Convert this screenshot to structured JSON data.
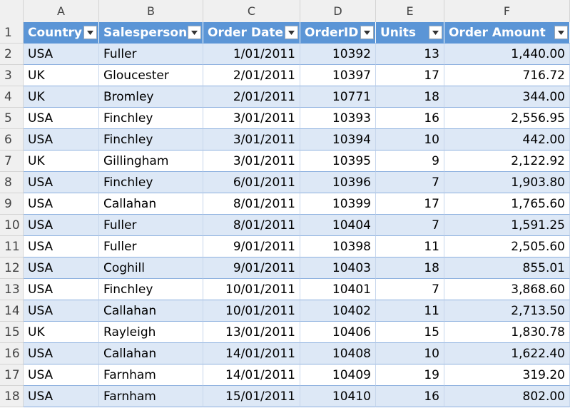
{
  "columns": [
    "A",
    "B",
    "C",
    "D",
    "E",
    "F"
  ],
  "row_numbers": [
    "1",
    "2",
    "3",
    "4",
    "5",
    "6",
    "7",
    "8",
    "9",
    "10",
    "11",
    "12",
    "13",
    "14",
    "15",
    "16",
    "17",
    "18"
  ],
  "table": {
    "headers": [
      "Country",
      "Salesperson",
      "Order Date",
      "OrderID",
      "Units",
      "Order Amount"
    ],
    "rows": [
      [
        "USA",
        "Fuller",
        "1/01/2011",
        "10392",
        "13",
        "1,440.00"
      ],
      [
        "UK",
        "Gloucester",
        "2/01/2011",
        "10397",
        "17",
        "716.72"
      ],
      [
        "UK",
        "Bromley",
        "2/01/2011",
        "10771",
        "18",
        "344.00"
      ],
      [
        "USA",
        "Finchley",
        "3/01/2011",
        "10393",
        "16",
        "2,556.95"
      ],
      [
        "USA",
        "Finchley",
        "3/01/2011",
        "10394",
        "10",
        "442.00"
      ],
      [
        "UK",
        "Gillingham",
        "3/01/2011",
        "10395",
        "9",
        "2,122.92"
      ],
      [
        "USA",
        "Finchley",
        "6/01/2011",
        "10396",
        "7",
        "1,903.80"
      ],
      [
        "USA",
        "Callahan",
        "8/01/2011",
        "10399",
        "17",
        "1,765.60"
      ],
      [
        "USA",
        "Fuller",
        "8/01/2011",
        "10404",
        "7",
        "1,591.25"
      ],
      [
        "USA",
        "Fuller",
        "9/01/2011",
        "10398",
        "11",
        "2,505.60"
      ],
      [
        "USA",
        "Coghill",
        "9/01/2011",
        "10403",
        "18",
        "855.01"
      ],
      [
        "USA",
        "Finchley",
        "10/01/2011",
        "10401",
        "7",
        "3,868.60"
      ],
      [
        "USA",
        "Callahan",
        "10/01/2011",
        "10402",
        "11",
        "2,713.50"
      ],
      [
        "UK",
        "Rayleigh",
        "13/01/2011",
        "10406",
        "15",
        "1,830.78"
      ],
      [
        "USA",
        "Callahan",
        "14/01/2011",
        "10408",
        "10",
        "1,622.40"
      ],
      [
        "USA",
        "Farnham",
        "14/01/2011",
        "10409",
        "19",
        "319.20"
      ],
      [
        "USA",
        "Farnham",
        "15/01/2011",
        "10410",
        "16",
        "802.00"
      ]
    ]
  },
  "colors": {
    "header_bg": "#5b95d6",
    "band_bg": "#dde8f6",
    "header_text": "#ffffff"
  },
  "icons": {
    "filter": "filter-dropdown-icon"
  }
}
